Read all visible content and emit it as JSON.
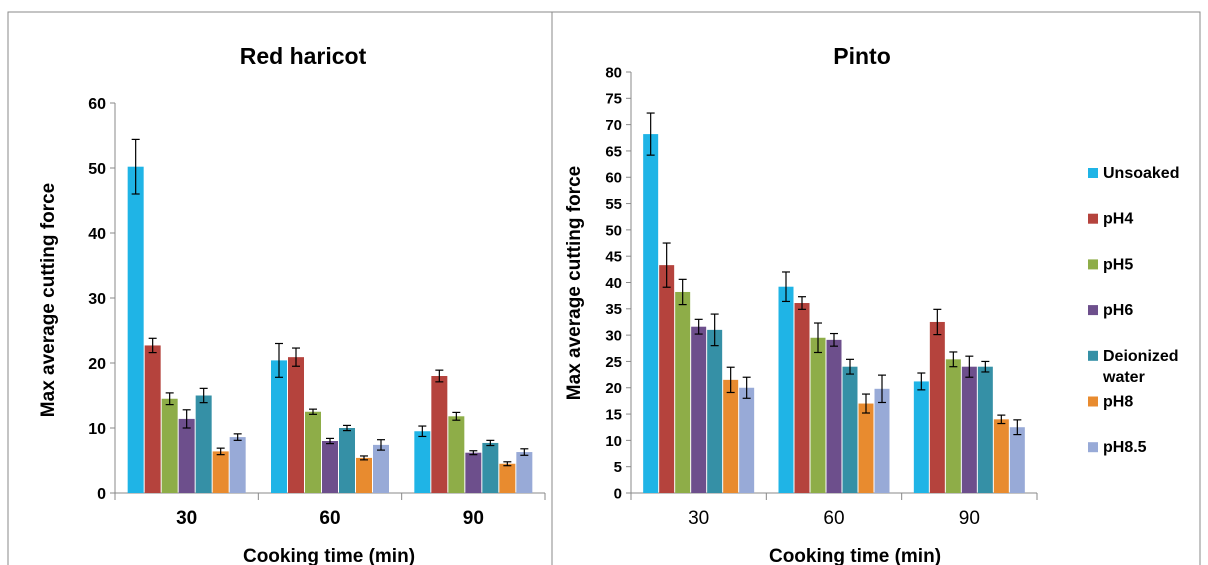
{
  "chart_data": [
    {
      "type": "bar",
      "title": "Red haricot",
      "xlabel": "Cooking time (min)",
      "ylabel": "Max average cutting force",
      "categories": [
        "30",
        "60",
        "90"
      ],
      "ylim": [
        0,
        60
      ],
      "yticks": [
        0,
        10,
        20,
        30,
        40,
        50,
        60
      ],
      "grid": false,
      "legend": "none",
      "series": [
        {
          "name": "Unsoaked",
          "color": "#1fb4e6",
          "values": [
            50.2,
            20.4,
            9.5
          ],
          "errors": [
            4.2,
            2.6,
            0.8
          ]
        },
        {
          "name": "pH4",
          "color": "#b5433d",
          "values": [
            22.7,
            20.9,
            18.0
          ],
          "errors": [
            1.1,
            1.4,
            0.9
          ]
        },
        {
          "name": "pH5",
          "color": "#8ead48",
          "values": [
            14.5,
            12.5,
            11.8
          ],
          "errors": [
            0.9,
            0.4,
            0.6
          ]
        },
        {
          "name": "pH6",
          "color": "#6d4f8c",
          "values": [
            11.4,
            8.0,
            6.2
          ],
          "errors": [
            1.4,
            0.4,
            0.3
          ]
        },
        {
          "name": "Deionized water",
          "color": "#3590a6",
          "values": [
            15.0,
            10.0,
            7.7
          ],
          "errors": [
            1.1,
            0.4,
            0.4
          ]
        },
        {
          "name": "pH8",
          "color": "#e88b2f",
          "values": [
            6.4,
            5.4,
            4.5
          ],
          "errors": [
            0.5,
            0.3,
            0.3
          ]
        },
        {
          "name": "pH8.5",
          "color": "#98aad7",
          "values": [
            8.6,
            7.4,
            6.3
          ],
          "errors": [
            0.5,
            0.8,
            0.5
          ]
        }
      ]
    },
    {
      "type": "bar",
      "title": "Pinto",
      "xlabel": "Cooking time (min)",
      "ylabel": "Max average cutting force",
      "categories": [
        "30",
        "60",
        "90"
      ],
      "ylim": [
        0,
        80
      ],
      "yticks": [
        0,
        5,
        10,
        15,
        20,
        25,
        30,
        35,
        40,
        45,
        50,
        55,
        60,
        65,
        70,
        75,
        80
      ],
      "grid": false,
      "legend": "right",
      "series": [
        {
          "name": "Unsoaked",
          "color": "#1fb4e6",
          "values": [
            68.2,
            39.2,
            21.2
          ],
          "errors": [
            4.0,
            2.8,
            1.6
          ]
        },
        {
          "name": "pH4",
          "color": "#b5433d",
          "values": [
            43.3,
            36.1,
            32.5
          ],
          "errors": [
            4.2,
            1.2,
            2.4
          ]
        },
        {
          "name": "pH5",
          "color": "#8ead48",
          "values": [
            38.2,
            29.5,
            25.4
          ],
          "errors": [
            2.4,
            2.8,
            1.4
          ]
        },
        {
          "name": "pH6",
          "color": "#6d4f8c",
          "values": [
            31.6,
            29.1,
            24.0
          ],
          "errors": [
            1.4,
            1.2,
            2.0
          ]
        },
        {
          "name": "Deionized water",
          "color": "#3590a6",
          "values": [
            31.0,
            24.0,
            24.0
          ],
          "errors": [
            3.0,
            1.4,
            1.0
          ]
        },
        {
          "name": "pH8",
          "color": "#e88b2f",
          "values": [
            21.5,
            17.0,
            14.0
          ],
          "errors": [
            2.4,
            1.8,
            0.8
          ]
        },
        {
          "name": "pH8.5",
          "color": "#98aad7",
          "values": [
            20.0,
            19.8,
            12.5
          ],
          "errors": [
            2.0,
            2.6,
            1.4
          ]
        }
      ],
      "legend_entries": [
        {
          "label": "Unsoaked",
          "color": "#1fb4e6"
        },
        {
          "label": "pH4",
          "color": "#b5433d"
        },
        {
          "label": "pH5",
          "color": "#8ead48"
        },
        {
          "label": "pH6",
          "color": "#6d4f8c"
        },
        {
          "label": "Deionized",
          "label2": "water",
          "color": "#3590a6"
        },
        {
          "label": "pH8",
          "color": "#e88b2f"
        },
        {
          "label": "pH8.5",
          "color": "#98aad7"
        }
      ]
    }
  ]
}
